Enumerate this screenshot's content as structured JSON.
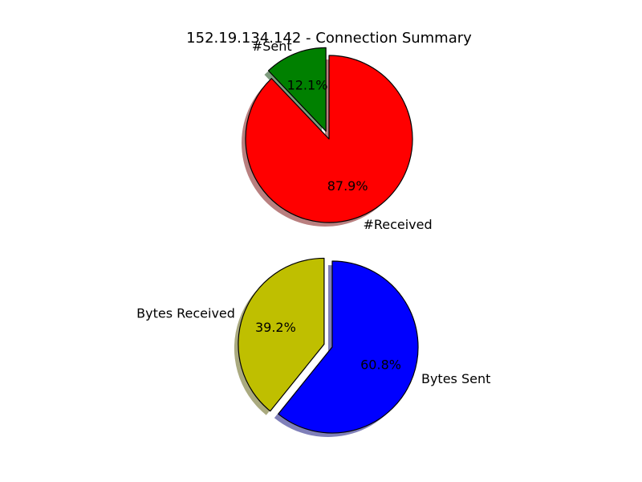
{
  "title": "152.19.134.142 - Connection Summary",
  "chart_data": [
    {
      "type": "pie",
      "categories": [
        "#Sent",
        "#Received"
      ],
      "values": [
        12.1,
        87.9
      ],
      "value_labels": [
        "12.1%",
        "87.9%"
      ],
      "colors": [
        "#008000",
        "#ff0000"
      ],
      "exploded": [
        "#Sent"
      ],
      "shadow": true
    },
    {
      "type": "pie",
      "categories": [
        "Bytes Received",
        "Bytes Sent"
      ],
      "values": [
        39.2,
        60.8
      ],
      "value_labels": [
        "39.2%",
        "60.8%"
      ],
      "colors": [
        "#bfbf00",
        "#0000ff"
      ],
      "exploded": [
        "Bytes Received"
      ],
      "shadow": true
    }
  ]
}
